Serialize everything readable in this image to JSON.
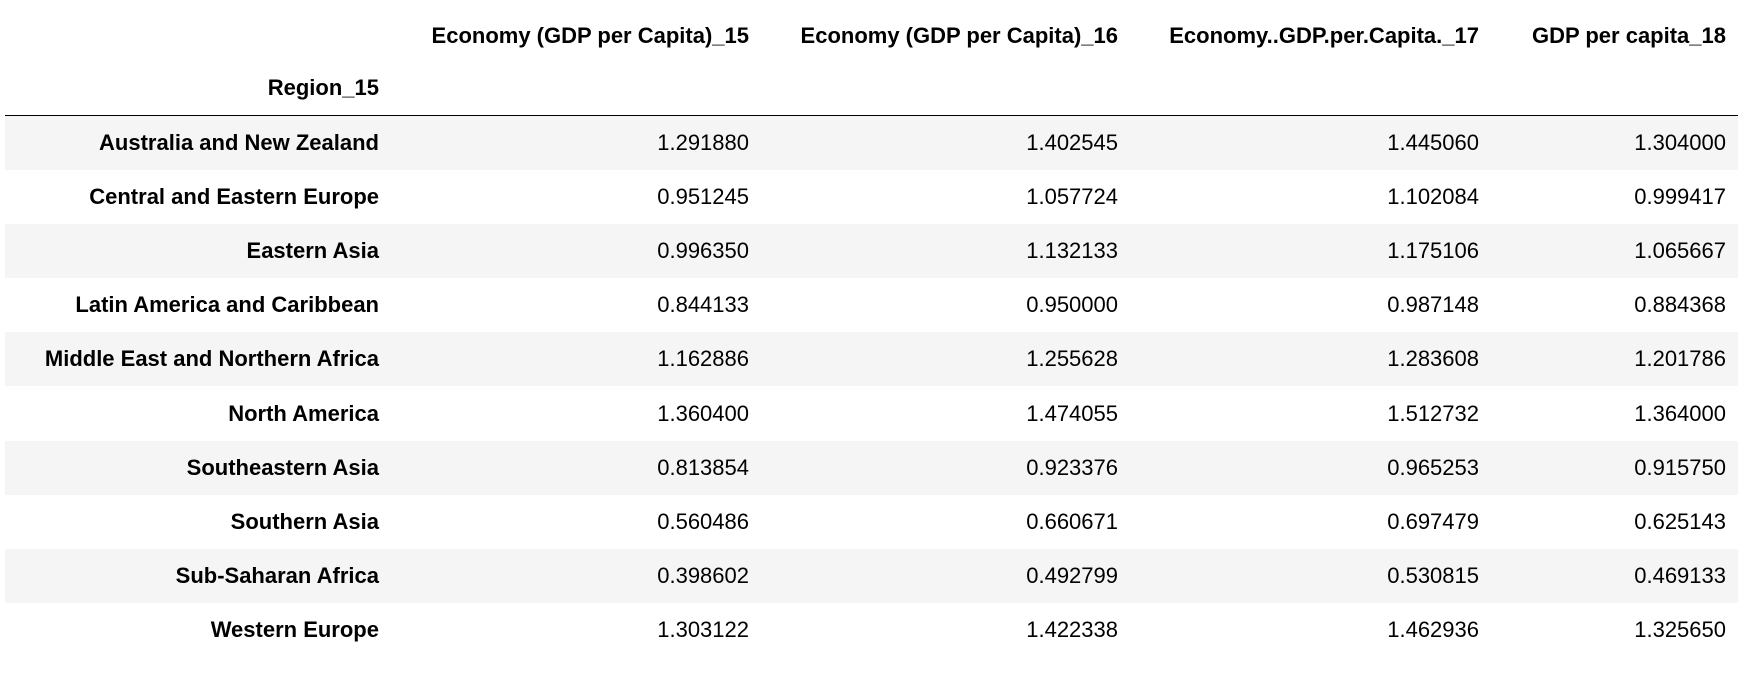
{
  "table": {
    "index_name": "Region_15",
    "columns": [
      "Economy (GDP per Capita)_15",
      "Economy (GDP per Capita)_16",
      "Economy..GDP.per.Capita._17",
      "GDP per capita_18"
    ],
    "rows": [
      {
        "region": "Australia and New Zealand",
        "values": [
          "1.291880",
          "1.402545",
          "1.445060",
          "1.304000"
        ]
      },
      {
        "region": "Central and Eastern Europe",
        "values": [
          "0.951245",
          "1.057724",
          "1.102084",
          "0.999417"
        ]
      },
      {
        "region": "Eastern Asia",
        "values": [
          "0.996350",
          "1.132133",
          "1.175106",
          "1.065667"
        ]
      },
      {
        "region": "Latin America and Caribbean",
        "values": [
          "0.844133",
          "0.950000",
          "0.987148",
          "0.884368"
        ]
      },
      {
        "region": "Middle East and Northern Africa",
        "values": [
          "1.162886",
          "1.255628",
          "1.283608",
          "1.201786"
        ]
      },
      {
        "region": "North America",
        "values": [
          "1.360400",
          "1.474055",
          "1.512732",
          "1.364000"
        ]
      },
      {
        "region": "Southeastern Asia",
        "values": [
          "0.813854",
          "0.923376",
          "0.965253",
          "0.915750"
        ]
      },
      {
        "region": "Southern Asia",
        "values": [
          "0.560486",
          "0.660671",
          "0.697479",
          "0.625143"
        ]
      },
      {
        "region": "Sub-Saharan Africa",
        "values": [
          "0.398602",
          "0.492799",
          "0.530815",
          "0.469133"
        ]
      },
      {
        "region": "Western Europe",
        "values": [
          "1.303122",
          "1.422338",
          "1.462936",
          "1.325650"
        ]
      }
    ]
  }
}
